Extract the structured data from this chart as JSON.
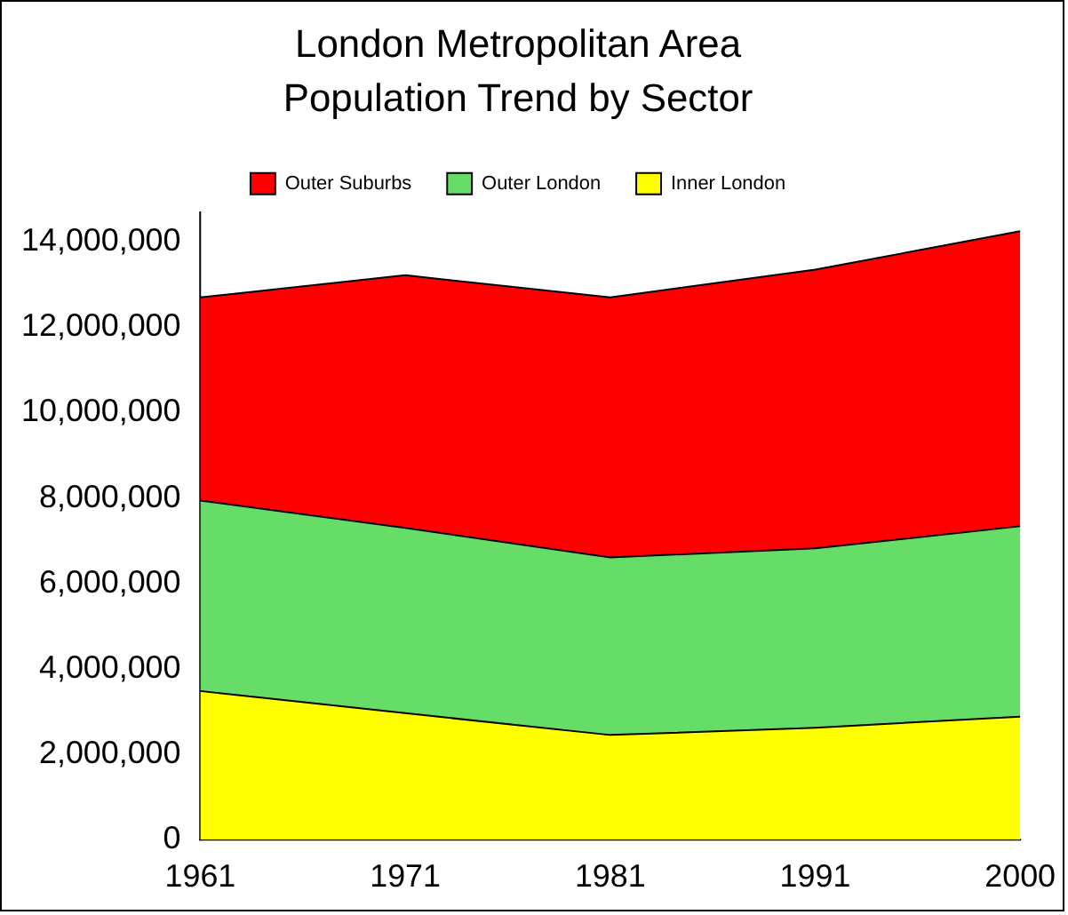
{
  "chart_data": {
    "type": "area",
    "title": "London Metropolitan Area",
    "subtitle": "Population Trend by Sector",
    "categories": [
      "1961",
      "1971",
      "1981",
      "1991",
      "2000"
    ],
    "stacked": true,
    "series": [
      {
        "name": "Inner London",
        "color": "#ffff00",
        "values": [
          3480000,
          2960000,
          2450000,
          2620000,
          2880000
        ]
      },
      {
        "name": "Outer London",
        "color": "#66dd66",
        "values": [
          4460000,
          4340000,
          4160000,
          4200000,
          4460000
        ]
      },
      {
        "name": "Outer Suburbs",
        "color": "#ff0000",
        "values": [
          4760000,
          5920000,
          6090000,
          6530000,
          6910000
        ]
      }
    ],
    "ylim": [
      0,
      14700000
    ],
    "yticks": [
      0,
      {
        "value": 2000000,
        "label": "2,000,000"
      },
      {
        "value": 4000000,
        "label": "4,000,000"
      },
      {
        "value": 6000000,
        "label": "6,000,000"
      },
      {
        "value": 8000000,
        "label": "8,000,000"
      },
      {
        "value": 10000000,
        "label": "10,000,000"
      },
      {
        "value": 12000000,
        "label": "12,000,000"
      },
      {
        "value": 14000000,
        "label": "14,000,000"
      }
    ],
    "grid": false,
    "legend": "top"
  }
}
